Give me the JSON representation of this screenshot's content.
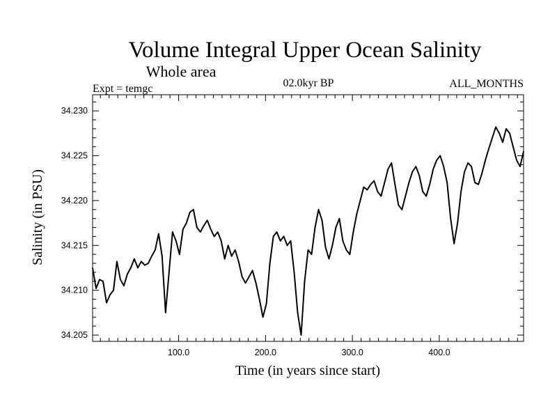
{
  "chart_data": {
    "type": "line",
    "title": "Volume Integral Upper Ocean Salinity",
    "subtitle": "Whole area",
    "experiment_label": "Expt = temgc",
    "period_label": "02.0kyr BP",
    "months_label": "ALL_MONTHS",
    "xlabel": "Time (in years since start)",
    "ylabel": "Salinity (in PSU)",
    "xlim": [
      1,
      497
    ],
    "ylim": [
      34.2043,
      34.2318
    ],
    "xticks": [
      {
        "value": 100,
        "label": "100.0"
      },
      {
        "value": 200,
        "label": "200.0"
      },
      {
        "value": 300,
        "label": "300.0"
      },
      {
        "value": 400,
        "label": "400.0"
      }
    ],
    "yticks": [
      {
        "value": 34.205,
        "label": "34.205"
      },
      {
        "value": 34.21,
        "label": "34.210"
      },
      {
        "value": 34.215,
        "label": "34.215"
      },
      {
        "value": 34.22,
        "label": "34.220"
      },
      {
        "value": 34.225,
        "label": "34.225"
      },
      {
        "value": 34.23,
        "label": "34.230"
      }
    ],
    "grid": false,
    "series": [
      {
        "name": "Salinity",
        "color": "#000000",
        "x": [
          1,
          5,
          9,
          13,
          17,
          21,
          25,
          29,
          33,
          37,
          41,
          45,
          49,
          53,
          57,
          61,
          65,
          69,
          73,
          77,
          81,
          85,
          89,
          93,
          97,
          101,
          105,
          109,
          113,
          117,
          121,
          125,
          129,
          133,
          137,
          141,
          145,
          149,
          153,
          157,
          161,
          165,
          169,
          173,
          177,
          181,
          185,
          189,
          193,
          197,
          201,
          205,
          209,
          213,
          217,
          221,
          225,
          229,
          233,
          237,
          241,
          245,
          249,
          253,
          257,
          261,
          265,
          269,
          273,
          277,
          281,
          285,
          289,
          293,
          297,
          301,
          305,
          309,
          313,
          317,
          321,
          325,
          329,
          333,
          337,
          341,
          345,
          349,
          353,
          357,
          361,
          365,
          369,
          373,
          377,
          381,
          385,
          389,
          393,
          397,
          401,
          405,
          409,
          413,
          417,
          421,
          425,
          429,
          433,
          437,
          441,
          445,
          449,
          453,
          457,
          461,
          465,
          469,
          473,
          477,
          481,
          485,
          489,
          493,
          497
        ],
        "values": [
          34.2125,
          34.2102,
          34.2112,
          34.211,
          34.2086,
          34.2095,
          34.21,
          34.2132,
          34.2112,
          34.2105,
          34.2118,
          34.2125,
          34.2135,
          34.2125,
          34.2132,
          34.2128,
          34.213,
          34.2138,
          34.2145,
          34.2163,
          34.2138,
          34.2075,
          34.212,
          34.2165,
          34.2155,
          34.214,
          34.2168,
          34.2175,
          34.2187,
          34.219,
          34.217,
          34.2165,
          34.2172,
          34.2178,
          34.2168,
          34.216,
          34.2165,
          34.2155,
          34.2135,
          34.215,
          34.2138,
          34.2145,
          34.2132,
          34.2115,
          34.2108,
          34.2115,
          34.2122,
          34.2108,
          34.209,
          34.207,
          34.2085,
          34.213,
          34.216,
          34.2165,
          34.2155,
          34.216,
          34.215,
          34.2155,
          34.212,
          34.2075,
          34.205,
          34.211,
          34.2145,
          34.214,
          34.217,
          34.219,
          34.2178,
          34.2148,
          34.2135,
          34.215,
          34.217,
          34.218,
          34.2155,
          34.2145,
          34.214,
          34.2165,
          34.2185,
          34.22,
          34.2215,
          34.2212,
          34.2218,
          34.2222,
          34.221,
          34.2205,
          34.222,
          34.2235,
          34.2242,
          34.2218,
          34.2195,
          34.219,
          34.2205,
          34.222,
          34.2232,
          34.2238,
          34.2228,
          34.221,
          34.2205,
          34.2218,
          34.2235,
          34.2245,
          34.225,
          34.2238,
          34.222,
          34.218,
          34.2152,
          34.2175,
          34.221,
          34.2232,
          34.2242,
          34.2238,
          34.222,
          34.2218,
          34.223,
          34.2245,
          34.2258,
          34.227,
          34.2282,
          34.2275,
          34.2265,
          34.228,
          34.2275,
          34.226,
          34.2245,
          34.2238,
          34.2255
        ]
      }
    ]
  }
}
